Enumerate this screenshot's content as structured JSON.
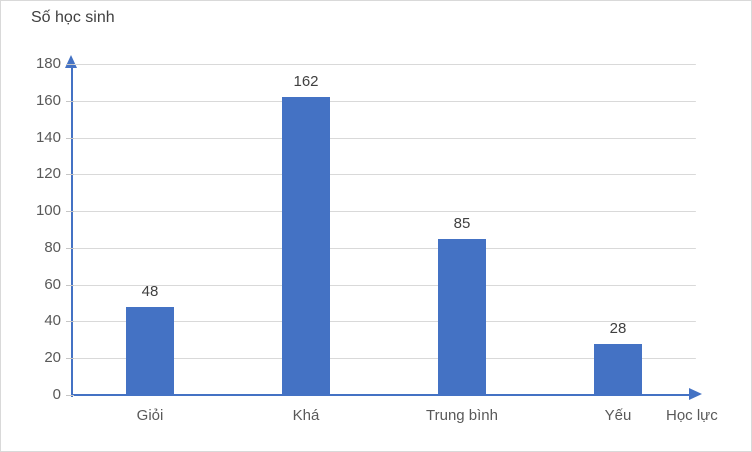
{
  "window": {
    "background": "#ffffff",
    "border_color": "#d9d9d9"
  },
  "chart_data": {
    "type": "bar",
    "title": "Số học sinh",
    "xlabel": "Học lực",
    "ylabel": "Số học sinh",
    "categories": [
      "Giỏi",
      "Khá",
      "Trung bình",
      "Yếu"
    ],
    "values": [
      48,
      162,
      85,
      28
    ],
    "ylim": [
      0,
      180
    ],
    "ytick_step": 20,
    "ytick_labels": [
      "0",
      "20",
      "40",
      "60",
      "80",
      "100",
      "120",
      "140",
      "160",
      "180"
    ],
    "grid": true,
    "show_data_labels": true,
    "legend_position": "none",
    "colors": {
      "bar": "#4472c4",
      "axis": "#4472c4",
      "gridline": "#d9d9d9",
      "tick_text": "#595959",
      "data_label_text": "#404040",
      "title_text": "#404040"
    }
  }
}
